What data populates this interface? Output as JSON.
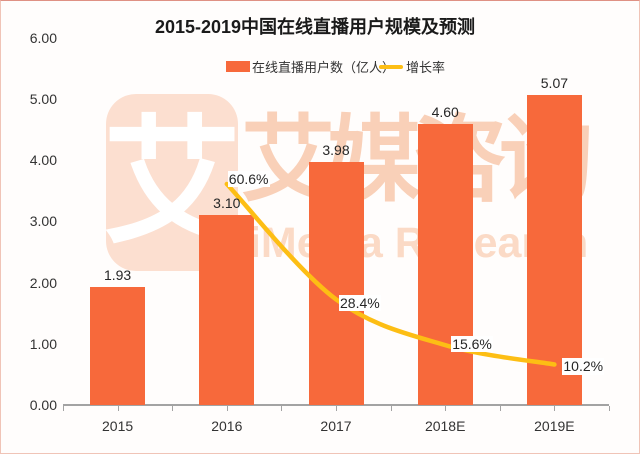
{
  "title": "2015-2019中国在线直播用户规模及预测",
  "legend": {
    "bar_label": "在线直播用户数（亿人）",
    "line_label": "增长率"
  },
  "watermark": {
    "logo_glyph": "艾",
    "brand_cn": "艾媒咨询",
    "brand_en": "iiMedia Research"
  },
  "colors": {
    "bar": "#f7693b",
    "line": "#fdbe14",
    "axis": "#a3a3a3",
    "label_text": "#262626",
    "watermark_logo_bg": "#fcdfd0",
    "watermark_cn": "#f9d0b8",
    "watermark_en": "#fbdac6"
  },
  "chart_data": {
    "type": "bar",
    "title": "2015-2019中国在线直播用户规模及预测",
    "categories": [
      "2015",
      "2016",
      "2017",
      "2018E",
      "2019E"
    ],
    "series": [
      {
        "name": "在线直播用户数（亿人）",
        "type": "bar",
        "values": [
          1.93,
          3.1,
          3.98,
          4.6,
          5.07
        ],
        "labels": [
          "1.93",
          "3.10",
          "3.98",
          "4.60",
          "5.07"
        ]
      },
      {
        "name": "增长率",
        "type": "line",
        "unit": "%",
        "values": [
          null,
          60.6,
          28.4,
          15.6,
          10.2
        ],
        "labels": [
          null,
          "60.6%",
          "28.4%",
          "15.6%",
          "10.2%"
        ]
      }
    ],
    "y_axis": {
      "ticks": [
        "0.00",
        "1.00",
        "2.00",
        "3.00",
        "4.00",
        "5.00",
        "6.00"
      ],
      "min": 0,
      "max": 6
    },
    "grid": false,
    "legend_position": "top"
  }
}
